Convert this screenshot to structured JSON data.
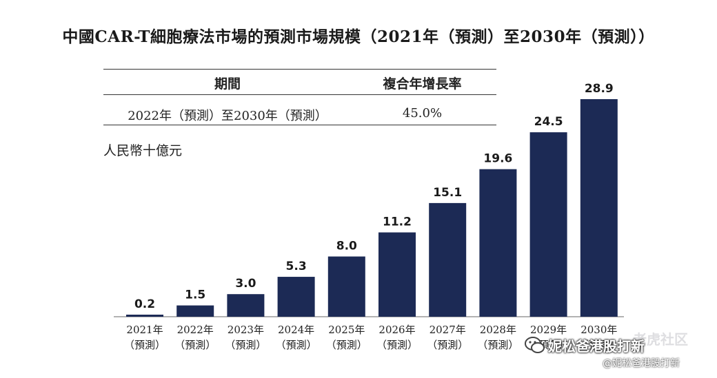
{
  "title": "中國CAR-T細胞療法市場的預測市場規模（2021年（預測）至2030年（預測））",
  "cagr_table": {
    "header_period": "期間",
    "header_rate": "複合年增長率",
    "period": "2022年（預測）至2030年（預測）",
    "rate": "45.0%"
  },
  "unit_label": "人民幣十億元",
  "chart_data": {
    "type": "bar",
    "categories": [
      "2021年\n（預測）",
      "2022年\n（預測）",
      "2023年\n（預測）",
      "2024年\n（預測）",
      "2025年\n（預測）",
      "2026年\n（預測）",
      "2027年\n（預測）",
      "2028年\n（預測）",
      "2029年\n（預測）",
      "2030年\n（預測）"
    ],
    "values": [
      0.2,
      1.5,
      3.0,
      5.3,
      8.0,
      11.2,
      15.1,
      19.6,
      24.5,
      28.9
    ],
    "value_labels": [
      "0.2",
      "1.5",
      "3.0",
      "5.3",
      "8.0",
      "11.2",
      "15.1",
      "19.6",
      "24.5",
      "28.9"
    ],
    "title": "中國CAR-T細胞療法市場的預測市場規模（2021年（預測）至2030年（預測））",
    "xlabel": "",
    "ylabel": "人民幣十億元",
    "ylim": [
      0,
      28.9
    ],
    "grid": false,
    "bar_color": "#1c2a55"
  },
  "watermark": {
    "line1": "老虎社区",
    "line2": "妮松爸港股打新",
    "line3": "@妮松爸港股打新"
  }
}
